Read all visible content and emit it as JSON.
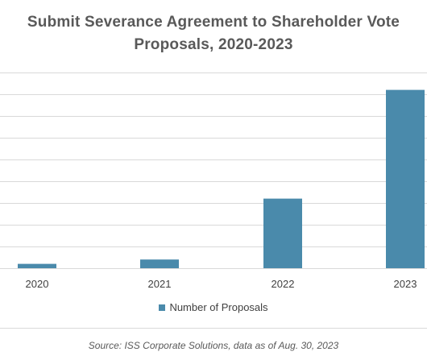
{
  "chart_data": {
    "type": "bar",
    "title_lines": [
      "Submit Severance Agreement to Shareholder Vote",
      "Proposals, 2020-2023"
    ],
    "categories": [
      "2020",
      "2021",
      "2022",
      "2023"
    ],
    "series": [
      {
        "name": "Number of Proposals",
        "values": [
          0.2,
          0.4,
          3.2,
          8.2
        ],
        "color": "#4a8aab"
      }
    ],
    "ylim": [
      0,
      9
    ],
    "y_gridlines": [
      0,
      1,
      2,
      3,
      4,
      5,
      6,
      7,
      8,
      9
    ],
    "y_tick_labels_visible": false,
    "grid": true,
    "legend": "bottom-center",
    "xlabel": "",
    "ylabel": ""
  },
  "source": "Source: ISS Corporate Solutions, data as of Aug. 30, 2023"
}
